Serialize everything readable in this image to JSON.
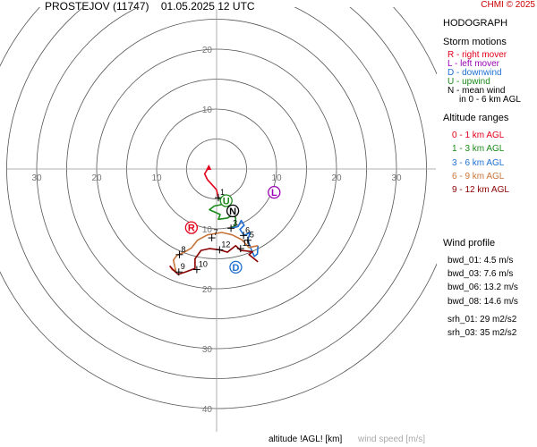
{
  "header": {
    "station": "PROSTEJOV (11747)",
    "time": "01.05.2025 12 UTC",
    "credit": "CHMI © 2025"
  },
  "legend": {
    "title": "HODOGRAPH",
    "storm_motions_title": "Storm motions",
    "storm_motions": [
      {
        "key": "R",
        "text": "R - right mover",
        "color": "#e3001b"
      },
      {
        "key": "L",
        "text": "L - left mover",
        "color": "#9a00b4"
      },
      {
        "key": "D",
        "text": "D - downwind",
        "color": "#1f6fd1"
      },
      {
        "key": "U",
        "text": "U - upwind",
        "color": "#1a8a1a"
      },
      {
        "key": "N",
        "text": "N - mean wind",
        "color": "#000000"
      }
    ],
    "mean_wind_note": "in 0 - 6 km AGL",
    "altitude_title": "Altitude ranges",
    "altitude_ranges": [
      {
        "text": "0 - 1 km AGL",
        "color": "#e3001b"
      },
      {
        "text": "1 - 3 km AGL",
        "color": "#1a8a1a"
      },
      {
        "text": "3 - 6 km AGL",
        "color": "#1f6fd1"
      },
      {
        "text": "6 - 9 km AGL",
        "color": "#c8743a"
      },
      {
        "text": "9 - 12 km AGL",
        "color": "#8b0000"
      }
    ]
  },
  "wind_profile": {
    "title": "Wind profile",
    "bwd": [
      "bwd_01: 4.5 m/s",
      "bwd_03: 7.6 m/s",
      "bwd_06: 13.2 m/s",
      "bwd_08: 14.6 m/s"
    ],
    "srh": [
      "srh_01: 29 m2/s2",
      "srh_03: 35 m2/s2"
    ]
  },
  "footer": {
    "altitude_label": "altitude !AGL! [km]",
    "speed_label": "wind speed [m/s]"
  },
  "chart_data": {
    "type": "line",
    "title": "HODOGRAPH",
    "x_tick_labels": [
      "30",
      "20",
      "10",
      "10",
      "20",
      "30"
    ],
    "x_tick_values": [
      -30,
      -20,
      -10,
      10,
      20,
      30
    ],
    "y_tick_labels": [
      "20",
      "10",
      "10",
      "20",
      "30",
      "40"
    ],
    "y_tick_values": [
      20,
      10,
      -10,
      -20,
      -30,
      -40
    ],
    "ring_radii": [
      5,
      10,
      15,
      20,
      25,
      30,
      35,
      40
    ],
    "grid": true,
    "series": [
      {
        "color": "#e3001b",
        "points": [
          [
            -1.3,
            0.3
          ],
          [
            -2,
            -0.8
          ],
          [
            -1.5,
            -1.8
          ],
          [
            -0.6,
            -2.8
          ],
          [
            0,
            -3.5
          ],
          [
            0.3,
            -4.8
          ]
        ]
      },
      {
        "color": "#1a8a1a",
        "points": [
          [
            0.3,
            -4.8
          ],
          [
            1.5,
            -5.8
          ],
          [
            -0.4,
            -6.2
          ],
          [
            -1.2,
            -6.8
          ],
          [
            0.6,
            -7.6
          ],
          [
            0.3,
            -8.4
          ],
          [
            1.8,
            -8.2
          ],
          [
            2.8,
            -7.6
          ],
          [
            3.2,
            -8.2
          ],
          [
            3.1,
            -9.4
          ],
          [
            2.4,
            -9.9
          ]
        ]
      },
      {
        "color": "#1f6fd1",
        "points": [
          [
            2.4,
            -9.9
          ],
          [
            3.6,
            -9.6
          ],
          [
            4.1,
            -8.6
          ],
          [
            4.6,
            -9.4
          ],
          [
            3.9,
            -10.1
          ],
          [
            4.6,
            -11.1
          ],
          [
            5.6,
            -10.6
          ],
          [
            5.2,
            -11.9
          ],
          [
            5.8,
            -13.5
          ],
          [
            6.3,
            -14.6
          ],
          [
            6.8,
            -14.2
          ],
          [
            6.9,
            -12.8
          ]
        ]
      },
      {
        "color": "#c8743a",
        "points": [
          [
            6.9,
            -12.8
          ],
          [
            5.4,
            -13.1
          ],
          [
            4.2,
            -11.8
          ],
          [
            2.6,
            -11.0
          ],
          [
            0.9,
            -10.6
          ],
          [
            -1.5,
            -11.0
          ],
          [
            -3.2,
            -11.9
          ],
          [
            -4.2,
            -13.2
          ],
          [
            -5.6,
            -14.0
          ],
          [
            -6.6,
            -14.4
          ],
          [
            -7.2,
            -15.2
          ],
          [
            -7.0,
            -16.2
          ],
          [
            -6.8,
            -17.0
          ],
          [
            -7.4,
            -16.8
          ],
          [
            -7.8,
            -16.2
          ]
        ]
      },
      {
        "color": "#8b0000",
        "points": [
          [
            -7.8,
            -16.2
          ],
          [
            -7.2,
            -16.9
          ],
          [
            -6.4,
            -17.6
          ],
          [
            -5.2,
            -17.2
          ],
          [
            -3.6,
            -16.6
          ],
          [
            -3.6,
            -15.0
          ],
          [
            -2.6,
            -13.6
          ],
          [
            -1.2,
            -13.3
          ],
          [
            0.5,
            -13.5
          ],
          [
            1.8,
            -13.9
          ],
          [
            3.2,
            -12.8
          ],
          [
            4.0,
            -13.6
          ],
          [
            6.0,
            -13.8
          ],
          [
            5.4,
            -14.3
          ],
          [
            6.9,
            -15.5
          ]
        ]
      }
    ],
    "altitude_markers": [
      {
        "label": "1",
        "x": 0.3,
        "y": -4.8
      },
      {
        "label": "3",
        "x": 2.4,
        "y": -9.9
      },
      {
        "label": "5",
        "x": 5.2,
        "y": -11.9
      },
      {
        "label": "6",
        "x": 4.5,
        "y": -11.1
      },
      {
        "label": "7",
        "x": -0.8,
        "y": -11.5
      },
      {
        "label": "8",
        "x": -6.2,
        "y": -14.3
      },
      {
        "label": "9",
        "x": -6.3,
        "y": -17.2
      },
      {
        "label": "10",
        "x": -3.3,
        "y": -16.8
      },
      {
        "label": "11",
        "x": 4.0,
        "y": -13.3
      },
      {
        "label": "12",
        "x": 0.5,
        "y": -13.5
      }
    ],
    "storm_vectors": [
      {
        "key": "R",
        "x": -4.2,
        "y": -9.8,
        "color": "#e3001b"
      },
      {
        "key": "L",
        "x": 9.6,
        "y": -3.9,
        "color": "#9a00b4"
      },
      {
        "key": "D",
        "x": 3.2,
        "y": -16.4,
        "color": "#1f6fd1"
      },
      {
        "key": "U",
        "x": 1.6,
        "y": -5.3,
        "color": "#1a8a1a"
      },
      {
        "key": "N",
        "x": 2.7,
        "y": -7.0,
        "color": "#000000"
      }
    ]
  }
}
